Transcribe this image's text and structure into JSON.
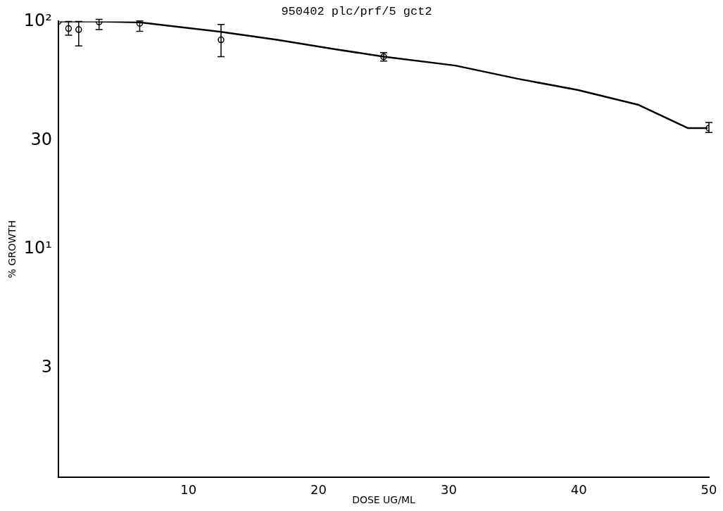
{
  "chart_data": {
    "type": "scatter",
    "title": "950402 plc/prf/5 gct2",
    "xlabel": "DOSE UG/ML",
    "ylabel": "% GROWTH",
    "log": "y",
    "grid": false,
    "legend": false,
    "xlim": [
      0,
      50
    ],
    "xticks": [
      10,
      20,
      30,
      40,
      50
    ],
    "ylim": [
      1,
      100
    ],
    "yticks": [
      {
        "value": 100,
        "label": "10²"
      },
      30,
      {
        "value": 10,
        "label": "10¹"
      },
      3
    ],
    "series": [
      {
        "color": "#000000",
        "marker": "circle",
        "x": [
          0,
          0.78,
          1.56,
          3.125,
          6.25,
          12.5,
          25,
          50
        ],
        "values": [
          100,
          93,
          92,
          99.5,
          98,
          83,
          70,
          34
        ],
        "errors": [
          null,
          [
            87,
            100
          ],
          [
            78,
            100
          ],
          [
            92,
            102
          ],
          [
            90.5,
            100.5
          ],
          [
            70,
            97
          ],
          [
            67,
            73
          ],
          [
            32.5,
            36
          ]
        ]
      },
      {
        "type": "line",
        "color": "#000000",
        "marker": "none",
        "line_style": "solid",
        "x": [
          0,
          3,
          6.25,
          12.5,
          16.8,
          21.2,
          25,
          30.5,
          35.3,
          39.9,
          44.6,
          48.4,
          49.9
        ],
        "values": [
          100,
          100,
          99,
          90,
          83,
          75.6,
          70,
          64,
          56,
          50,
          43,
          34,
          34
        ]
      }
    ]
  }
}
